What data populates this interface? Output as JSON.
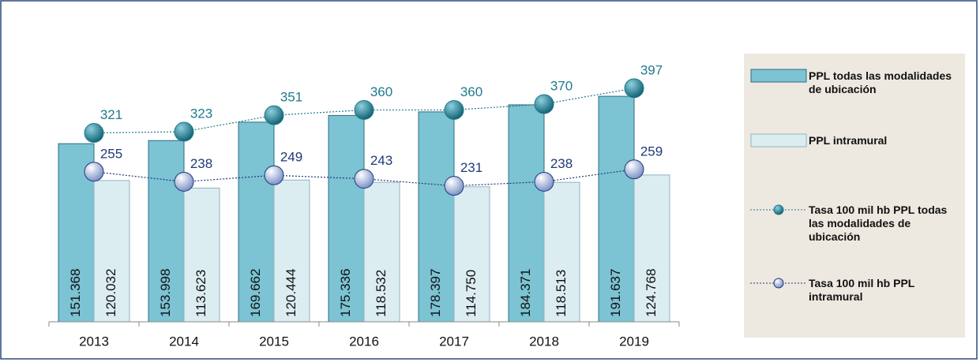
{
  "chart_data": {
    "type": "bar",
    "categories": [
      "2013",
      "2014",
      "2015",
      "2016",
      "2017",
      "2018",
      "2019"
    ],
    "ylim": [
      0,
      250000
    ],
    "y2lim": [
      0,
      500
    ],
    "series": [
      {
        "name": "PPL todas las modalidades de ubicación",
        "type": "bar",
        "color": "#7cc3d3",
        "values": [
          151368,
          153998,
          169662,
          175336,
          178397,
          184371,
          191637
        ],
        "value_labels": [
          "151.368",
          "153.998",
          "169.662",
          "175.336",
          "178.397",
          "184.371",
          "191.637"
        ]
      },
      {
        "name": "PPL  intramural",
        "type": "bar",
        "color": "#dcedf2",
        "values": [
          120032,
          113623,
          120444,
          118532,
          114750,
          118513,
          124768
        ],
        "value_labels": [
          "120.032",
          "113.623",
          "120.444",
          "118.532",
          "114.750",
          "118.513",
          "124.768"
        ]
      },
      {
        "name": "Tasa 100 mil hb PPL todas las modalidades de ubicación",
        "type": "line",
        "axis": "y2",
        "color": "#1f7a8c",
        "values": [
          321,
          323,
          351,
          360,
          360,
          370,
          397
        ]
      },
      {
        "name": "Tasa 100 mil hb PPL intramural",
        "type": "line",
        "axis": "y2",
        "color": "#1f3a7a",
        "values": [
          255,
          238,
          249,
          243,
          231,
          238,
          259
        ]
      }
    ]
  }
}
